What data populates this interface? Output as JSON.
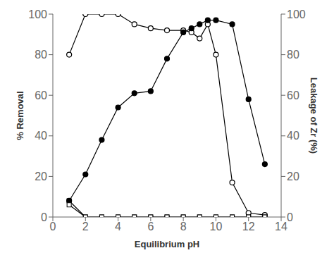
{
  "chart_data": {
    "type": "line",
    "xlabel": "Equilibrium pH",
    "ylabel": "% Removal",
    "y2label": "Leakage of Zr (%)",
    "xlim": [
      0,
      14
    ],
    "xticks": [
      0,
      2,
      4,
      6,
      8,
      10,
      12,
      14
    ],
    "ylim": [
      0,
      100
    ],
    "yticks": [
      0,
      20,
      40,
      60,
      80,
      100
    ],
    "y2lim": [
      0,
      100
    ],
    "y2ticks": [
      0,
      20,
      40,
      60,
      80,
      100
    ],
    "grid": false,
    "series": [
      {
        "x": [
          1,
          2,
          3,
          4,
          5,
          6,
          7,
          8,
          8.5,
          9,
          9.5,
          10,
          11,
          12,
          13
        ],
        "values": [
          80,
          100,
          100,
          100,
          95,
          93,
          92,
          92,
          91,
          88,
          95,
          80,
          17,
          2,
          1
        ],
        "color": "#000000",
        "marker": "open_circle"
      },
      {
        "x": [
          1,
          2,
          3,
          4,
          5,
          6,
          7,
          8,
          8.5,
          9,
          9.5,
          10,
          11,
          12,
          13
        ],
        "values": [
          8,
          21,
          38,
          54,
          61,
          62,
          78,
          91,
          93,
          95,
          97,
          97,
          95,
          58,
          26
        ],
        "color": "#000000",
        "marker": "filled_circle"
      },
      {
        "x": [
          1,
          2,
          3,
          4,
          5,
          6,
          7,
          8,
          9,
          10,
          11,
          12,
          13
        ],
        "values": [
          8,
          0,
          0,
          0,
          0,
          0,
          0,
          0,
          0,
          0,
          0,
          0,
          0
        ],
        "color": "#000000",
        "marker": "filled_square"
      },
      {
        "x": [
          1,
          2,
          3,
          4,
          5,
          6,
          7,
          8,
          9,
          10,
          11,
          12,
          13
        ],
        "values": [
          6,
          0,
          0,
          0,
          0,
          0,
          0,
          0,
          0,
          0,
          0,
          0,
          0
        ],
        "color": "#000000",
        "marker": "open_square"
      }
    ]
  }
}
